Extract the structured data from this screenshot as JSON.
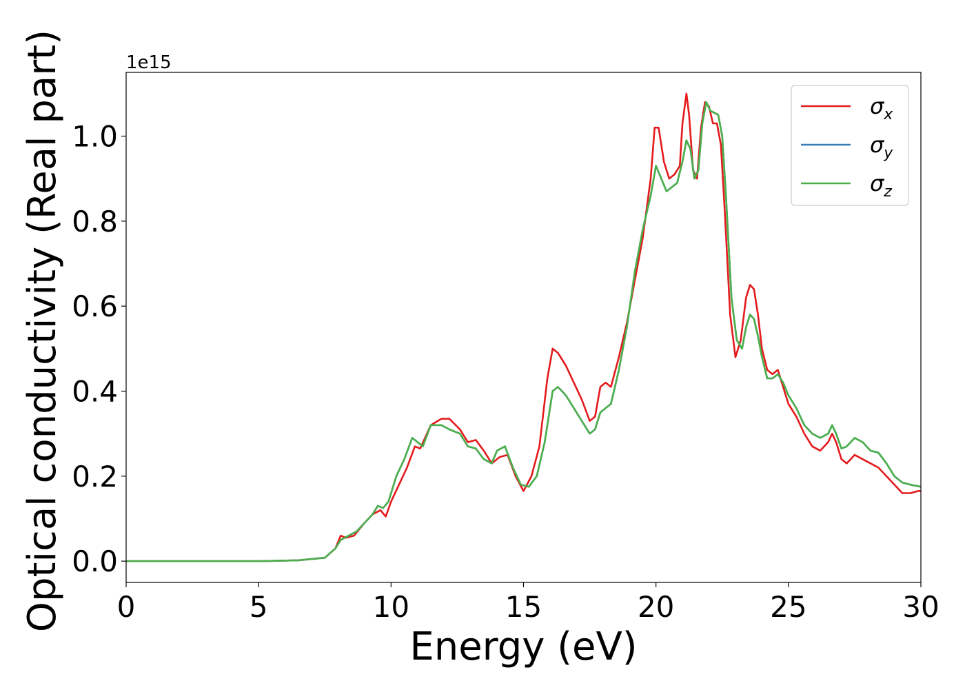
{
  "chart_data": {
    "type": "line",
    "title": "",
    "xlabel": "Energy (eV)",
    "ylabel": "Optical conductivity (Real part)",
    "y_offset_label": "1e15",
    "xlim": [
      0,
      30
    ],
    "ylim": [
      -0.05,
      1.15
    ],
    "x_ticks": [
      0,
      5,
      10,
      15,
      20,
      25,
      30
    ],
    "x_tick_labels": [
      "0",
      "5",
      "10",
      "15",
      "20",
      "25",
      "30"
    ],
    "y_ticks": [
      0.0,
      0.2,
      0.4,
      0.6,
      0.8,
      1.0
    ],
    "y_tick_labels": [
      "0.0",
      "0.2",
      "0.4",
      "0.6",
      "0.8",
      "1.0"
    ],
    "grid": false,
    "legend_position": "top-right",
    "series": [
      {
        "name": "σx",
        "legend_base": "σ",
        "legend_sub": "x",
        "color": "#e41a1c",
        "x": [
          0,
          5,
          6.5,
          7.5,
          7.9,
          8.1,
          8.3,
          8.6,
          9.0,
          9.3,
          9.6,
          9.8,
          10.0,
          10.3,
          10.6,
          10.9,
          11.1,
          11.5,
          11.9,
          12.2,
          12.6,
          12.9,
          13.2,
          13.5,
          13.8,
          14.1,
          14.4,
          14.7,
          15.0,
          15.3,
          15.6,
          15.9,
          16.1,
          16.3,
          16.6,
          16.9,
          17.2,
          17.5,
          17.7,
          17.9,
          18.1,
          18.3,
          18.6,
          18.9,
          19.2,
          19.5,
          19.8,
          19.95,
          20.1,
          20.3,
          20.5,
          20.7,
          20.9,
          21.0,
          21.15,
          21.25,
          21.4,
          21.55,
          21.7,
          21.85,
          22.0,
          22.15,
          22.3,
          22.45,
          22.6,
          22.8,
          23.0,
          23.2,
          23.4,
          23.55,
          23.7,
          23.85,
          24.0,
          24.2,
          24.4,
          24.6,
          24.8,
          25.0,
          25.3,
          25.6,
          25.9,
          26.2,
          26.5,
          26.65,
          26.8,
          27.0,
          27.2,
          27.5,
          27.8,
          28.1,
          28.4,
          28.7,
          29.0,
          29.3,
          29.6,
          29.9,
          30.0
        ],
        "y": [
          0.0,
          0.0,
          0.002,
          0.008,
          0.03,
          0.06,
          0.055,
          0.06,
          0.09,
          0.11,
          0.12,
          0.105,
          0.14,
          0.18,
          0.22,
          0.27,
          0.265,
          0.32,
          0.335,
          0.335,
          0.31,
          0.28,
          0.285,
          0.26,
          0.23,
          0.245,
          0.25,
          0.2,
          0.165,
          0.2,
          0.27,
          0.43,
          0.5,
          0.49,
          0.46,
          0.42,
          0.38,
          0.33,
          0.34,
          0.41,
          0.42,
          0.41,
          0.48,
          0.56,
          0.66,
          0.76,
          0.9,
          1.02,
          1.02,
          0.94,
          0.9,
          0.91,
          0.93,
          1.03,
          1.1,
          1.05,
          0.92,
          0.9,
          1.02,
          1.08,
          1.07,
          1.03,
          1.03,
          0.98,
          0.82,
          0.58,
          0.48,
          0.52,
          0.62,
          0.65,
          0.64,
          0.58,
          0.5,
          0.45,
          0.44,
          0.45,
          0.41,
          0.37,
          0.34,
          0.3,
          0.27,
          0.26,
          0.28,
          0.3,
          0.28,
          0.24,
          0.23,
          0.25,
          0.24,
          0.23,
          0.22,
          0.2,
          0.18,
          0.16,
          0.16,
          0.165,
          0.165
        ]
      },
      {
        "name": "σy",
        "legend_base": "σ",
        "legend_sub": "y",
        "color": "#377eb8",
        "x": [
          0,
          5,
          6.5,
          7.5,
          7.9,
          8.1,
          8.4,
          8.7,
          9.0,
          9.3,
          9.5,
          9.7,
          9.9,
          10.2,
          10.5,
          10.8,
          11.0,
          11.2,
          11.5,
          11.9,
          12.2,
          12.6,
          12.9,
          13.2,
          13.5,
          13.8,
          14.0,
          14.3,
          14.6,
          14.9,
          15.2,
          15.5,
          15.8,
          16.1,
          16.3,
          16.6,
          16.9,
          17.2,
          17.5,
          17.7,
          17.9,
          18.1,
          18.3,
          18.6,
          18.9,
          19.2,
          19.5,
          19.8,
          20.0,
          20.2,
          20.4,
          20.6,
          20.8,
          21.0,
          21.15,
          21.3,
          21.45,
          21.6,
          21.75,
          21.9,
          22.05,
          22.2,
          22.35,
          22.5,
          22.65,
          22.85,
          23.05,
          23.25,
          23.4,
          23.55,
          23.7,
          23.85,
          24.0,
          24.2,
          24.4,
          24.6,
          24.8,
          25.0,
          25.3,
          25.6,
          25.9,
          26.2,
          26.5,
          26.65,
          26.8,
          27.0,
          27.2,
          27.5,
          27.8,
          28.1,
          28.4,
          28.7,
          29.0,
          29.3,
          29.6,
          30.0
        ],
        "y": [
          0.0,
          0.0,
          0.002,
          0.008,
          0.03,
          0.05,
          0.06,
          0.07,
          0.09,
          0.11,
          0.13,
          0.125,
          0.14,
          0.2,
          0.24,
          0.29,
          0.28,
          0.27,
          0.32,
          0.32,
          0.31,
          0.3,
          0.27,
          0.265,
          0.24,
          0.23,
          0.26,
          0.27,
          0.22,
          0.18,
          0.175,
          0.2,
          0.28,
          0.4,
          0.41,
          0.39,
          0.36,
          0.33,
          0.3,
          0.31,
          0.35,
          0.36,
          0.37,
          0.45,
          0.55,
          0.68,
          0.78,
          0.86,
          0.93,
          0.9,
          0.87,
          0.88,
          0.89,
          0.94,
          0.99,
          0.97,
          0.9,
          0.92,
          1.03,
          1.08,
          1.06,
          1.055,
          1.05,
          1.0,
          0.85,
          0.62,
          0.52,
          0.5,
          0.55,
          0.58,
          0.57,
          0.53,
          0.48,
          0.43,
          0.43,
          0.44,
          0.42,
          0.39,
          0.36,
          0.32,
          0.3,
          0.29,
          0.3,
          0.32,
          0.3,
          0.265,
          0.27,
          0.29,
          0.28,
          0.26,
          0.255,
          0.23,
          0.2,
          0.185,
          0.18,
          0.175
        ]
      },
      {
        "name": "σz",
        "legend_base": "σ",
        "legend_sub": "z",
        "color": "#4daf4a",
        "x": [
          0,
          5,
          6.5,
          7.5,
          7.9,
          8.1,
          8.4,
          8.7,
          9.0,
          9.3,
          9.5,
          9.7,
          9.9,
          10.2,
          10.5,
          10.8,
          11.0,
          11.2,
          11.5,
          11.9,
          12.2,
          12.6,
          12.9,
          13.2,
          13.5,
          13.8,
          14.0,
          14.3,
          14.6,
          14.9,
          15.2,
          15.5,
          15.8,
          16.1,
          16.3,
          16.6,
          16.9,
          17.2,
          17.5,
          17.7,
          17.9,
          18.1,
          18.3,
          18.6,
          18.9,
          19.2,
          19.5,
          19.8,
          20.0,
          20.2,
          20.4,
          20.6,
          20.8,
          21.0,
          21.15,
          21.3,
          21.45,
          21.6,
          21.75,
          21.9,
          22.05,
          22.2,
          22.35,
          22.5,
          22.65,
          22.85,
          23.05,
          23.25,
          23.4,
          23.55,
          23.7,
          23.85,
          24.0,
          24.2,
          24.4,
          24.6,
          24.8,
          25.0,
          25.3,
          25.6,
          25.9,
          26.2,
          26.5,
          26.65,
          26.8,
          27.0,
          27.2,
          27.5,
          27.8,
          28.1,
          28.4,
          28.7,
          29.0,
          29.3,
          29.6,
          30.0
        ],
        "y": [
          0.0,
          0.0,
          0.002,
          0.008,
          0.03,
          0.05,
          0.06,
          0.07,
          0.09,
          0.11,
          0.13,
          0.125,
          0.14,
          0.2,
          0.24,
          0.29,
          0.28,
          0.27,
          0.32,
          0.32,
          0.31,
          0.3,
          0.27,
          0.265,
          0.24,
          0.23,
          0.26,
          0.27,
          0.22,
          0.18,
          0.175,
          0.2,
          0.28,
          0.4,
          0.41,
          0.39,
          0.36,
          0.33,
          0.3,
          0.31,
          0.35,
          0.36,
          0.37,
          0.45,
          0.55,
          0.68,
          0.78,
          0.86,
          0.93,
          0.9,
          0.87,
          0.88,
          0.89,
          0.94,
          0.99,
          0.97,
          0.9,
          0.92,
          1.03,
          1.08,
          1.06,
          1.055,
          1.05,
          1.0,
          0.85,
          0.62,
          0.52,
          0.5,
          0.55,
          0.58,
          0.57,
          0.53,
          0.48,
          0.43,
          0.43,
          0.44,
          0.42,
          0.39,
          0.36,
          0.32,
          0.3,
          0.29,
          0.3,
          0.32,
          0.3,
          0.265,
          0.27,
          0.29,
          0.28,
          0.26,
          0.255,
          0.23,
          0.2,
          0.185,
          0.18,
          0.175
        ]
      }
    ]
  }
}
